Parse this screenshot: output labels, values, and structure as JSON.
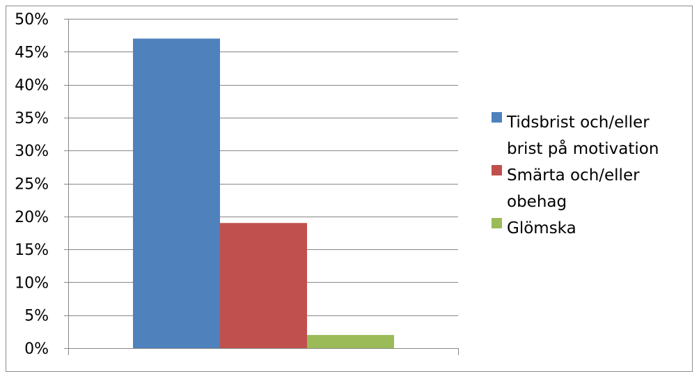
{
  "chart_data": {
    "type": "bar",
    "categories": [
      ""
    ],
    "series": [
      {
        "name": "Tidsbrist och/eller brist på motivation",
        "legend_lines": [
          "Tidsbrist och/eller",
          "brist på motivation"
        ],
        "values": [
          0.47
        ],
        "color": "#4f81bd"
      },
      {
        "name": "Smärta och/eller obehag",
        "legend_lines": [
          "Smärta och/eller",
          "obehag"
        ],
        "values": [
          0.19
        ],
        "color": "#c0504d"
      },
      {
        "name": "Glömska",
        "legend_lines": [
          "Glömska"
        ],
        "values": [
          0.02
        ],
        "color": "#9bbb59"
      }
    ],
    "ylim": [
      0,
      0.5
    ],
    "y_tick_labels": [
      "0%",
      "5%",
      "10%",
      "15%",
      "20%",
      "25%",
      "30%",
      "35%",
      "40%",
      "45%",
      "50%"
    ],
    "grid": true,
    "legend_position": "right",
    "gridline_color": "#868686"
  }
}
